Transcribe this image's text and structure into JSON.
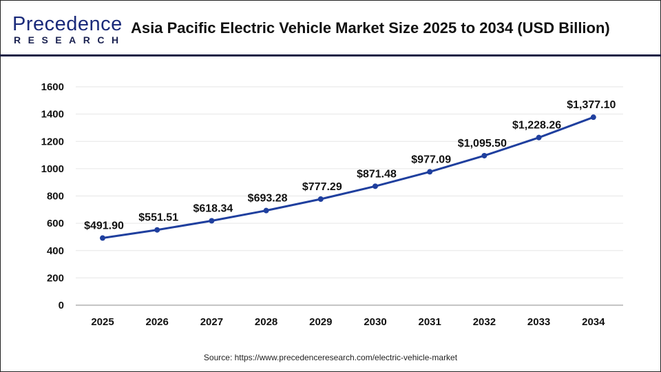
{
  "header": {
    "logo_text": "Precedence",
    "logo_subtext": "RESEARCH",
    "title": "Asia Pacific Electric Vehicle Market Size 2025 to 2034 (USD Billion)"
  },
  "source": "Source: https://www.precedenceresearch.com/electric-vehicle-market",
  "chart_data": {
    "type": "line",
    "title": "Asia Pacific Electric Vehicle Market Size 2025 to 2034 (USD Billion)",
    "categories": [
      "2025",
      "2026",
      "2027",
      "2028",
      "2029",
      "2030",
      "2031",
      "2032",
      "2033",
      "2034"
    ],
    "values": [
      491.9,
      551.51,
      618.34,
      693.28,
      777.29,
      871.48,
      977.09,
      1095.5,
      1228.26,
      1377.1
    ],
    "data_labels": [
      "$491.90",
      "$551.51",
      "$618.34",
      "$693.28",
      "$777.29",
      "$871.48",
      "$977.09",
      "$1,095.50",
      "$1,228.26",
      "$1,377.10"
    ],
    "ylim": [
      0,
      1600
    ],
    "yticks": [
      0,
      200,
      400,
      600,
      800,
      1000,
      1200,
      1400,
      1600
    ],
    "xlabel": "",
    "ylabel": "",
    "grid": true,
    "legend": "none",
    "line_color": "#1f3f9e"
  }
}
